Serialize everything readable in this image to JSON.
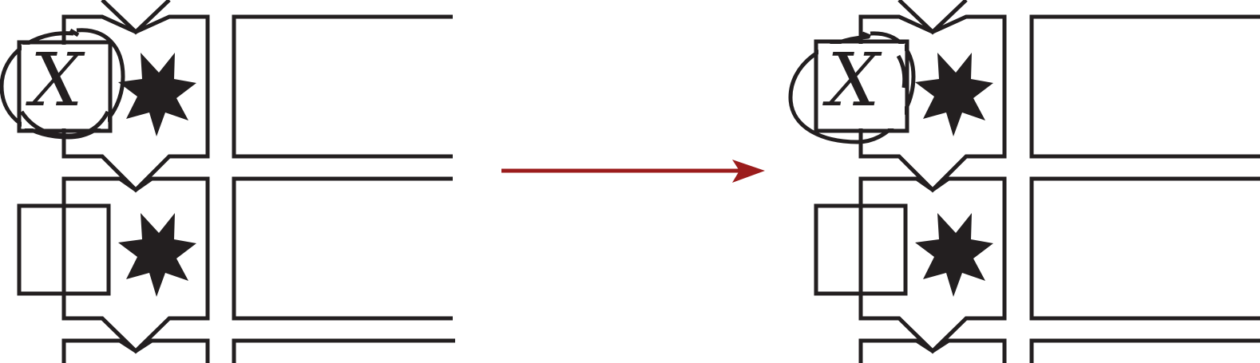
{
  "diagram": {
    "panels": [
      {
        "id": "before",
        "blocks": [
          {
            "has_annotation": true,
            "annotation_label": "X"
          },
          {
            "has_annotation": false,
            "annotation_label": ""
          },
          {
            "has_annotation": false,
            "annotation_label": ""
          }
        ]
      },
      {
        "id": "after",
        "blocks": [
          {
            "has_annotation": true,
            "annotation_label": "X"
          },
          {
            "has_annotation": false,
            "annotation_label": ""
          },
          {
            "has_annotation": false,
            "annotation_label": ""
          }
        ]
      }
    ],
    "transition_arrow": {
      "direction": "right"
    },
    "colors": {
      "line": "#231f20",
      "star": "#231f20",
      "arrow": "#9b1c1c",
      "background": "#ffffff"
    }
  }
}
